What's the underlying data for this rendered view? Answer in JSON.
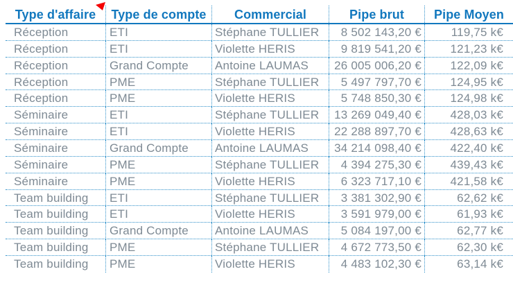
{
  "table": {
    "columns": [
      {
        "key": "type_affaire",
        "label": "Type d'affaire"
      },
      {
        "key": "type_compte",
        "label": "Type de compte"
      },
      {
        "key": "commercial",
        "label": "Commercial"
      },
      {
        "key": "pipe_brut",
        "label": "Pipe brut"
      },
      {
        "key": "pipe_moyen",
        "label": "Pipe Moyen"
      }
    ],
    "rows": [
      [
        "Réception",
        "ETI",
        "Stéphane TULLIER",
        "8 502 143,20 €",
        "119,75 k€"
      ],
      [
        "Réception",
        "ETI",
        "Violette HERIS",
        "9 819 541,20 €",
        "121,23 k€"
      ],
      [
        "Réception",
        "Grand Compte",
        "Antoine LAUMAS",
        "26 005 006,20 €",
        "122,09 k€"
      ],
      [
        "Réception",
        "PME",
        "Stéphane TULLIER",
        "5 497 797,70 €",
        "124,95 k€"
      ],
      [
        "Réception",
        "PME",
        "Violette HERIS",
        "5 748 850,30 €",
        "124,98 k€"
      ],
      [
        "Séminaire",
        "ETI",
        "Stéphane TULLIER",
        "13 269 049,40 €",
        "428,03 k€"
      ],
      [
        "Séminaire",
        "ETI",
        "Violette HERIS",
        "22 288 897,70 €",
        "428,63 k€"
      ],
      [
        "Séminaire",
        "Grand Compte",
        "Antoine LAUMAS",
        "34 214 098,40 €",
        "422,40 k€"
      ],
      [
        "Séminaire",
        "PME",
        "Stéphane TULLIER",
        "4 394 275,30 €",
        "439,43 k€"
      ],
      [
        "Séminaire",
        "PME",
        "Violette HERIS",
        "6 323 717,10 €",
        "421,58 k€"
      ],
      [
        "Team building",
        "ETI",
        "Stéphane TULLIER",
        "3 381 302,90 €",
        "62,62 k€"
      ],
      [
        "Team building",
        "ETI",
        "Violette HERIS",
        "3 591 979,00 €",
        "61,93 k€"
      ],
      [
        "Team building",
        "Grand Compte",
        "Antoine LAUMAS",
        "5 084 197,00 €",
        "62,77 k€"
      ],
      [
        "Team building",
        "PME",
        "Stéphane TULLIER",
        "4 672 773,50 €",
        "62,30 k€"
      ],
      [
        "Team building",
        "PME",
        "Violette HERIS",
        "4 483 102,30 €",
        "63,14 k€"
      ]
    ],
    "marker_icon": "red-corner-flag"
  },
  "colors": {
    "header_text": "#1278BE",
    "header_rule": "#1278BE",
    "grid_dots": "#2D8FC9",
    "body_text": "#7E8A94",
    "marker_red": "#F40000",
    "background": "#FFFFFF"
  }
}
